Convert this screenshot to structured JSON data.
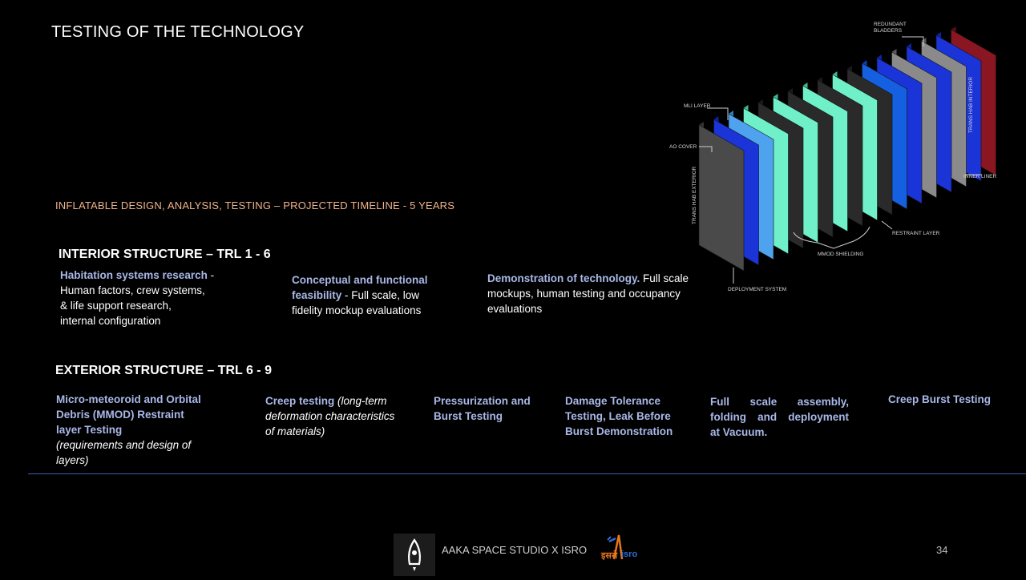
{
  "slide": {
    "title": "TESTING OF THE TECHNOLOGY",
    "timeline": "INFLATABLE DESIGN, ANALYSIS, TESTING – PROJECTED TIMELINE -  5 YEARS",
    "page_number": "34"
  },
  "interior": {
    "heading": "INTERIOR STRUCTURE – TRL 1 - 6",
    "items": [
      {
        "title": "Habitation systems research",
        "sep": " - ",
        "l1": "Human factors, crew systems,",
        "l2": "& life support research,",
        "l3": "internal configuration"
      },
      {
        "title_l1": "Conceptual and functional",
        "title_l2": "feasibility",
        "sep": " - ",
        "l2_rest": "Full scale, low",
        "l3": "fidelity mockup  evaluations"
      },
      {
        "title": "Demonstration of technology.",
        "l1_rest": " Full scale",
        "l2": "mockups,  human testing and occupancy",
        "l3": "evaluations"
      }
    ]
  },
  "exterior": {
    "heading": "EXTERIOR STRUCTURE – TRL 6 - 9",
    "items": [
      {
        "l1": "Micro-meteoroid and Orbital",
        "l2": "Debris (MMOD) Restraint",
        "l3": "layer Testing",
        "note_l1": "(requirements and design of",
        "note_l2": "layers)"
      },
      {
        "title": "Creep testing",
        "note_l1": " (long-term",
        "note_l2": "deformation characteristics",
        "note_l3": "of materials)"
      },
      {
        "l1": "Pressurization and",
        "l2": "Burst Testing"
      },
      {
        "l1": "Damage Tolerance",
        "l2": "Testing, Leak Before",
        "l3": "Burst Demonstration"
      },
      {
        "l1": "Full  scale  assembly,",
        "l2": "folding  and  deployment",
        "l3": "at Vacuum."
      },
      {
        "l1": "Creep Burst Testing"
      }
    ]
  },
  "diagram": {
    "labels": {
      "bladders": "REDUNDANT BLADDERS",
      "interior": "TRANS HAB INTERIOR",
      "inner_liner": "INNER LINER",
      "restraint": "RESTRAINT LAYER",
      "mmod": "MMOD SHIELDING",
      "deployment": "DEPLOYMENT SYSTEM",
      "mli": "MLI LAYER",
      "ao": "AO COVER",
      "exterior": "TRANS HAB EXTERIOR"
    }
  },
  "footer": {
    "text": "AAKA SPACE STUDIO X ISRO",
    "isro_hindi": "इसरो",
    "isro": "isro"
  },
  "colors": {
    "accent": "#a9b8e8",
    "timeline": "#f0b38a",
    "rule": "#3f5ab8"
  }
}
